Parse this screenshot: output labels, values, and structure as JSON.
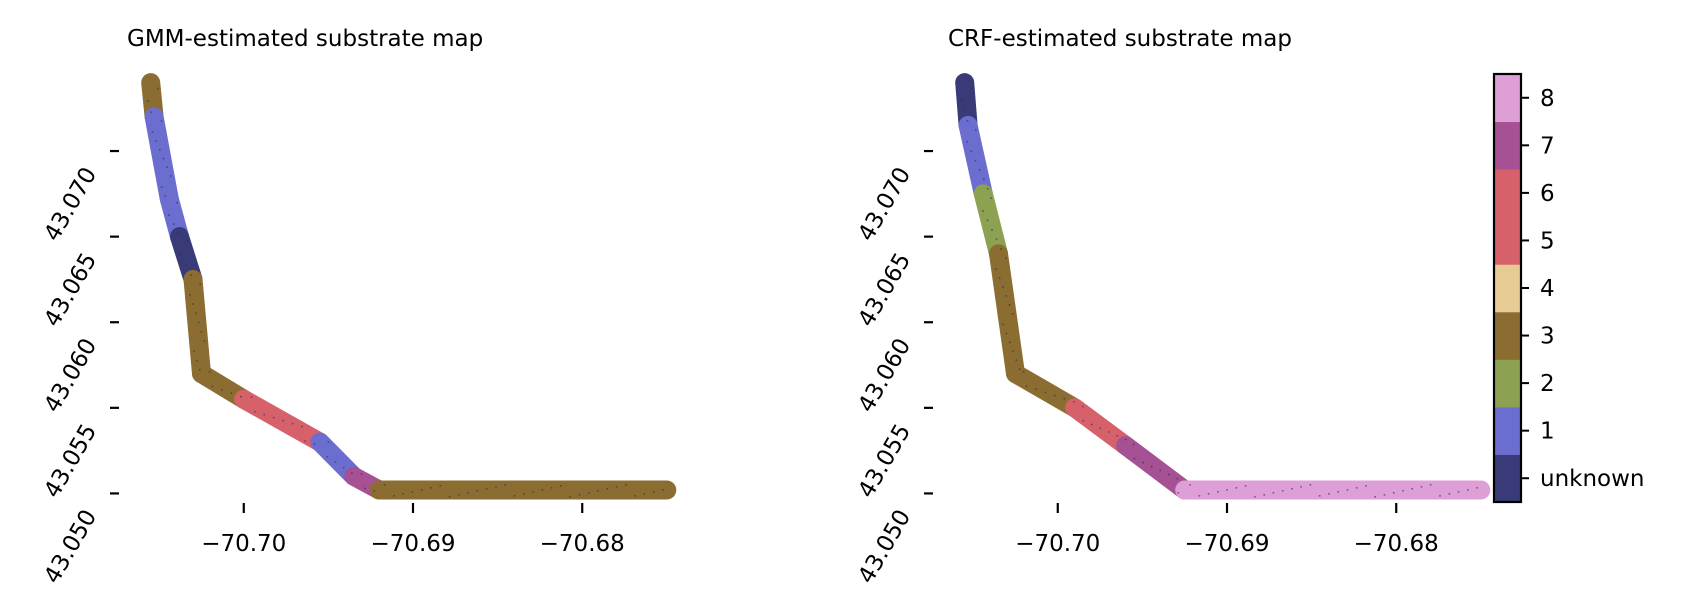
{
  "chart_data": [
    {
      "type": "heatmap",
      "title": "GMM-estimated substrate map",
      "xlabel": "",
      "ylabel": "",
      "xlim": [
        -70.7069,
        -70.6744
      ],
      "ylim": [
        43.0495,
        43.0745
      ],
      "xticks": [
        -70.7,
        -70.69,
        -70.68
      ],
      "xtick_labels": [
        "−70.70",
        "−70.69",
        "−70.68"
      ],
      "yticks": [
        43.05,
        43.055,
        43.06,
        43.065,
        43.07
      ],
      "ytick_labels": [
        "43.050",
        "43.055",
        "43.060",
        "43.065",
        "43.070"
      ],
      "grid": false,
      "segments": [
        {
          "path": [
            [
              -70.7055,
              43.074
            ],
            [
              -70.7053,
              43.072
            ]
          ],
          "class": "3"
        },
        {
          "path": [
            [
              -70.7053,
              43.072
            ],
            [
              -70.7044,
              43.0672
            ]
          ],
          "class": "1"
        },
        {
          "path": [
            [
              -70.7044,
              43.0672
            ],
            [
              -70.7038,
              43.065
            ]
          ],
          "class": "1"
        },
        {
          "path": [
            [
              -70.7038,
              43.065
            ],
            [
              -70.703,
              43.0625
            ]
          ],
          "class": "unknown"
        },
        {
          "path": [
            [
              -70.703,
              43.0625
            ],
            [
              -70.7025,
              43.057
            ]
          ],
          "class": "3"
        },
        {
          "path": [
            [
              -70.7025,
              43.057
            ],
            [
              -70.7,
              43.0555
            ]
          ],
          "class": "3"
        },
        {
          "path": [
            [
              -70.7,
              43.0555
            ],
            [
              -70.6955,
              43.053
            ]
          ],
          "class": "6"
        },
        {
          "path": [
            [
              -70.6955,
              43.053
            ],
            [
              -70.6935,
              43.051
            ]
          ],
          "class": "1"
        },
        {
          "path": [
            [
              -70.6935,
              43.051
            ],
            [
              -70.692,
              43.0502
            ]
          ],
          "class": "7"
        },
        {
          "path": [
            [
              -70.692,
              43.0502
            ],
            [
              -70.675,
              43.0502
            ]
          ],
          "class": "3"
        }
      ]
    },
    {
      "type": "heatmap",
      "title": "CRF-estimated substrate map",
      "xlabel": "",
      "ylabel": "",
      "xlim": [
        -70.7069,
        -70.6744
      ],
      "ylim": [
        43.0495,
        43.0745
      ],
      "xticks": [
        -70.7,
        -70.69,
        -70.68
      ],
      "xtick_labels": [
        "−70.70",
        "−70.69",
        "−70.68"
      ],
      "yticks": [
        43.05,
        43.055,
        43.06,
        43.065,
        43.07
      ],
      "ytick_labels": [
        "43.050",
        "43.055",
        "43.060",
        "43.065",
        "43.070"
      ],
      "grid": false,
      "segments": [
        {
          "path": [
            [
              -70.7055,
              43.074
            ],
            [
              -70.7053,
              43.0715
            ]
          ],
          "class": "unknown"
        },
        {
          "path": [
            [
              -70.7053,
              43.0715
            ],
            [
              -70.7044,
              43.0675
            ]
          ],
          "class": "1"
        },
        {
          "path": [
            [
              -70.7044,
              43.0675
            ],
            [
              -70.7035,
              43.064
            ]
          ],
          "class": "2"
        },
        {
          "path": [
            [
              -70.7035,
              43.064
            ],
            [
              -70.7025,
              43.057
            ]
          ],
          "class": "3"
        },
        {
          "path": [
            [
              -70.7025,
              43.057
            ],
            [
              -70.699,
              43.055
            ]
          ],
          "class": "3"
        },
        {
          "path": [
            [
              -70.699,
              43.055
            ],
            [
              -70.696,
              43.0528
            ]
          ],
          "class": "6"
        },
        {
          "path": [
            [
              -70.696,
              43.0528
            ],
            [
              -70.6925,
              43.0502
            ]
          ],
          "class": "7"
        },
        {
          "path": [
            [
              -70.6925,
              43.0502
            ],
            [
              -70.675,
              43.0502
            ]
          ],
          "class": "8"
        }
      ]
    }
  ],
  "colorbar": {
    "labels": [
      "unknown",
      "1",
      "2",
      "3",
      "4",
      "5",
      "6",
      "7",
      "8"
    ],
    "colors": {
      "unknown": "#393b79",
      "1": "#6b6ecf",
      "2": "#8ca252",
      "3": "#8c6d31",
      "4": "#e7cb94",
      "5": "#d6616b",
      "6": "#d6616b",
      "7": "#a55194",
      "8": "#de9ed6"
    },
    "band_colors": [
      "#393b79",
      "#6b6ecf",
      "#8ca252",
      "#8c6d31",
      "#e7cb94",
      "#d6616b",
      "#d6616b",
      "#a55194",
      "#de9ed6"
    ]
  }
}
